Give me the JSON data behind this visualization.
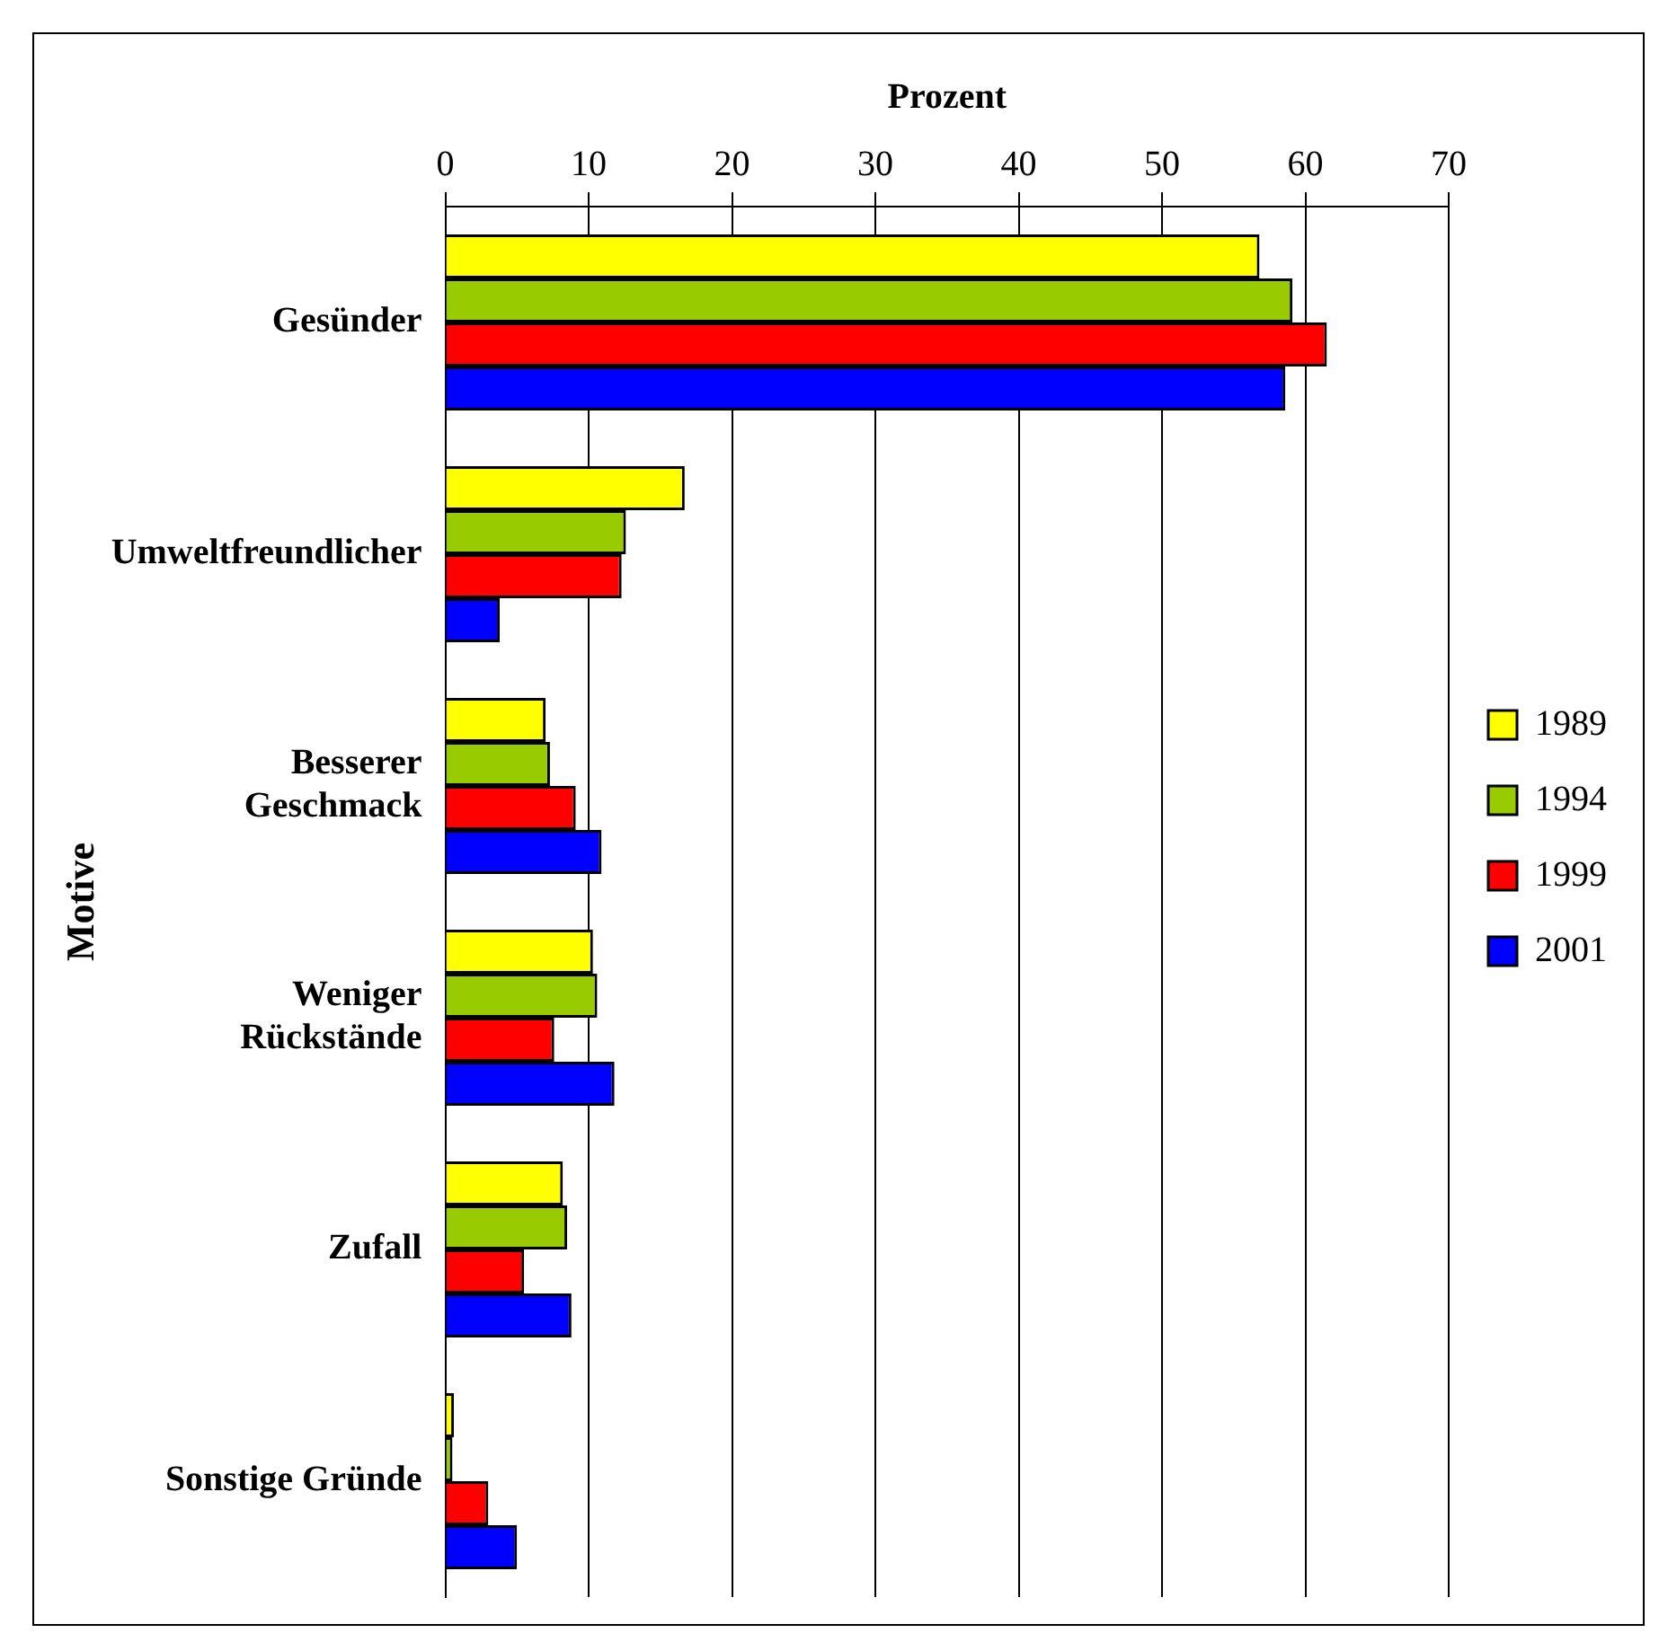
{
  "chart_data": {
    "type": "bar",
    "orientation": "horizontal",
    "xlabel": "Prozent",
    "ylabel": "Motive",
    "categories": [
      "Gesünder",
      "Umweltfreundlicher",
      "Besserer Geschmack",
      "Weniger Rückstände",
      "Zufall",
      "Sonstige Gründe"
    ],
    "series": [
      {
        "name": "1989",
        "color": "#ffff00",
        "values": [
          56.8,
          16.7,
          7.0,
          10.3,
          8.2,
          0.6
        ]
      },
      {
        "name": "1994",
        "color": "#99cc00",
        "values": [
          59.1,
          12.6,
          7.3,
          10.6,
          8.5,
          0.5
        ]
      },
      {
        "name": "1999",
        "color": "#ff0000",
        "values": [
          61.5,
          12.3,
          9.1,
          7.6,
          5.5,
          3.0
        ]
      },
      {
        "name": "2001",
        "color": "#0000ff",
        "values": [
          58.6,
          3.8,
          10.9,
          11.8,
          8.8,
          5.0
        ]
      }
    ],
    "xlim": [
      0,
      70
    ],
    "xticks": [
      0,
      10,
      20,
      30,
      40,
      50,
      60,
      70
    ],
    "grid": "x",
    "legend": "right"
  }
}
